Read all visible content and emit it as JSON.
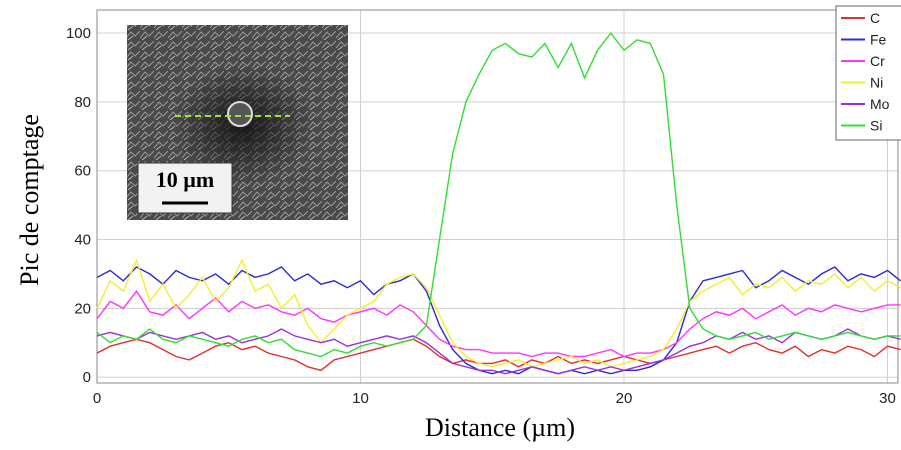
{
  "chart_data": {
    "type": "line",
    "xlabel": "Distance (µm)",
    "ylabel": "Pic de comptage",
    "inset_scale_label": "10 µm",
    "x": [
      0,
      0.5,
      1,
      1.5,
      2,
      2.5,
      3,
      3.5,
      4,
      4.5,
      5,
      5.5,
      6,
      6.5,
      7,
      7.5,
      8,
      8.5,
      9,
      9.5,
      10,
      10.5,
      11,
      11.5,
      12,
      12.5,
      13,
      13.5,
      14,
      14.5,
      15,
      15.5,
      16,
      16.5,
      17,
      17.5,
      18,
      18.5,
      19,
      19.5,
      20,
      20.5,
      21,
      21.5,
      22,
      22.5,
      23,
      23.5,
      24,
      24.5,
      25,
      25.5,
      26,
      26.5,
      27,
      27.5,
      28,
      28.5,
      29,
      29.5,
      30,
      30.5
    ],
    "series": [
      {
        "name": "C",
        "color": "#e03030",
        "values": [
          7,
          9,
          10,
          11,
          10,
          8,
          6,
          5,
          7,
          9,
          10,
          8,
          9,
          7,
          6,
          5,
          3,
          2,
          5,
          6,
          7,
          8,
          9,
          10,
          11,
          9,
          6,
          4,
          5,
          4,
          4,
          5,
          3,
          5,
          4,
          6,
          4,
          5,
          4,
          5,
          6,
          5,
          4,
          5,
          6,
          7,
          8,
          9,
          7,
          9,
          10,
          8,
          7,
          9,
          6,
          8,
          7,
          9,
          8,
          6,
          9,
          8
        ]
      },
      {
        "name": "Fe",
        "color": "#2a2ad8",
        "values": [
          29,
          31,
          28,
          32,
          30,
          27,
          31,
          29,
          28,
          30,
          27,
          31,
          29,
          30,
          32,
          28,
          30,
          27,
          28,
          26,
          28,
          24,
          27,
          28,
          30,
          25,
          15,
          8,
          4,
          2,
          1,
          2,
          1,
          3,
          2,
          1,
          2,
          1,
          2,
          1,
          2,
          2,
          3,
          5,
          10,
          22,
          28,
          29,
          30,
          31,
          26,
          28,
          31,
          29,
          27,
          30,
          32,
          28,
          30,
          29,
          31,
          28
        ]
      },
      {
        "name": "Cr",
        "color": "#ff33ff",
        "values": [
          17,
          22,
          20,
          25,
          19,
          18,
          21,
          17,
          20,
          23,
          19,
          22,
          20,
          21,
          19,
          18,
          20,
          17,
          16,
          18,
          19,
          20,
          18,
          21,
          19,
          15,
          11,
          9,
          8,
          8,
          7,
          7,
          7,
          6,
          7,
          7,
          6,
          6,
          7,
          8,
          6,
          7,
          7,
          8,
          10,
          14,
          17,
          19,
          18,
          20,
          17,
          19,
          21,
          18,
          20,
          19,
          21,
          20,
          19,
          20,
          21,
          21
        ]
      },
      {
        "name": "Ni",
        "color": "#f2ee30",
        "values": [
          20,
          28,
          25,
          34,
          22,
          27,
          20,
          24,
          29,
          22,
          26,
          34,
          25,
          27,
          20,
          24,
          15,
          10,
          14,
          18,
          20,
          22,
          27,
          29,
          30,
          26,
          18,
          10,
          6,
          4,
          3,
          4,
          5,
          3,
          4,
          5,
          6,
          4,
          5,
          3,
          4,
          5,
          6,
          8,
          14,
          22,
          25,
          27,
          29,
          24,
          27,
          26,
          29,
          25,
          28,
          27,
          30,
          26,
          29,
          25,
          28,
          26
        ]
      },
      {
        "name": "Mo",
        "color": "#9b30e0",
        "values": [
          12,
          13,
          12,
          11,
          13,
          12,
          11,
          12,
          13,
          11,
          12,
          10,
          11,
          12,
          14,
          12,
          11,
          10,
          11,
          9,
          10,
          11,
          12,
          11,
          12,
          10,
          7,
          4,
          3,
          2,
          2,
          1,
          2,
          3,
          2,
          1,
          2,
          3,
          2,
          3,
          2,
          3,
          4,
          5,
          7,
          9,
          10,
          12,
          11,
          13,
          11,
          12,
          10,
          13,
          12,
          11,
          12,
          14,
          12,
          11,
          12,
          11
        ]
      },
      {
        "name": "Si",
        "color": "#33dd33",
        "values": [
          13,
          10,
          12,
          11,
          14,
          11,
          10,
          12,
          11,
          10,
          9,
          11,
          12,
          10,
          11,
          8,
          7,
          6,
          8,
          7,
          9,
          10,
          9,
          10,
          11,
          15,
          40,
          65,
          80,
          88,
          95,
          97,
          94,
          93,
          97,
          90,
          97,
          87,
          95,
          100,
          95,
          98,
          97,
          88,
          50,
          20,
          14,
          12,
          11,
          12,
          13,
          11,
          12,
          13,
          12,
          11,
          12,
          13,
          12,
          11,
          12,
          12
        ]
      }
    ],
    "xlim": [
      0,
      30.4
    ],
    "ylim": [
      -1.7,
      106.7
    ],
    "xticks": [
      0,
      10,
      20,
      30
    ],
    "yticks": [
      0,
      20,
      40,
      60,
      80,
      100
    ],
    "grid": true,
    "legend": "top-right"
  }
}
